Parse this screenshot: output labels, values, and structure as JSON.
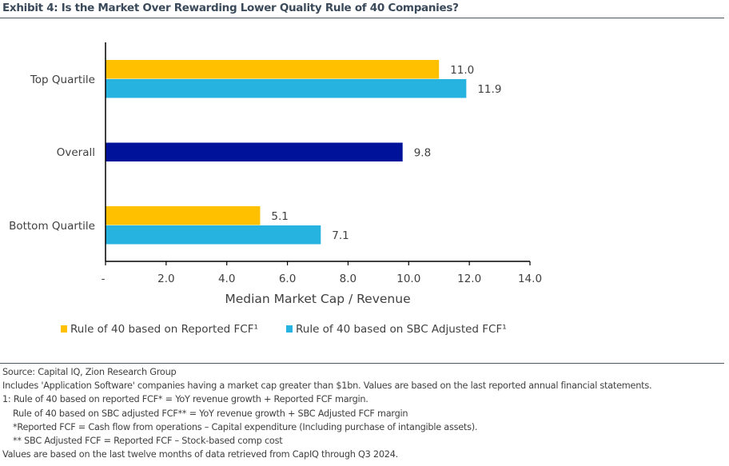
{
  "title": "Exhibit 4: Is the Market Over Rewarding Lower Quality Rule of 40 Companies?",
  "chart_data": {
    "type": "bar",
    "orientation": "horizontal",
    "title": "",
    "xlabel": "Median Market Cap / Revenue",
    "ylabel": "",
    "xlim": [
      0,
      14
    ],
    "x_ticks": [
      0,
      2,
      4,
      6,
      8,
      10,
      12,
      14
    ],
    "x_tick_labels": [
      "-",
      "2.0",
      "4.0",
      "6.0",
      "8.0",
      "10.0",
      "12.0",
      "14.0"
    ],
    "grid": false,
    "categories": [
      "Top Quartile",
      "Overall",
      "Bottom Quartile"
    ],
    "bars": [
      {
        "category": "Top Quartile",
        "series": "reported",
        "value": 11.0,
        "label": "11.0"
      },
      {
        "category": "Top Quartile",
        "series": "sbc",
        "value": 11.9,
        "label": "11.9"
      },
      {
        "category": "Overall",
        "series": "overall",
        "value": 9.8,
        "label": "9.8"
      },
      {
        "category": "Bottom Quartile",
        "series": "reported",
        "value": 5.1,
        "label": "5.1"
      },
      {
        "category": "Bottom Quartile",
        "series": "sbc",
        "value": 7.1,
        "label": "7.1"
      }
    ],
    "series": [
      {
        "key": "reported",
        "name": "Rule of 40 based on Reported FCF¹",
        "color": "#FFC000",
        "in_legend": true
      },
      {
        "key": "sbc",
        "name": "Rule of 40 based on SBC Adjusted FCF¹",
        "color": "#27B3E0",
        "in_legend": true
      },
      {
        "key": "overall",
        "name": "Overall",
        "color": "#00129A",
        "in_legend": false
      }
    ],
    "legend_position": "bottom"
  },
  "notes": {
    "source": "Source: Capital IQ, Zion Research Group",
    "includes": "Includes 'Application Software' companies having a market cap greater than $1bn. Values are based on the last reported annual financial statements.",
    "footnote_1": "1: Rule of 40 based on reported FCF* = YoY revenue growth + Reported FCF margin.",
    "footnote_1b": "Rule of 40 based on SBC adjusted FCF** = YoY revenue growth + SBC Adjusted FCF margin",
    "footnote_star": "*Reported FCF = Cash flow from operations – Capital expenditure (Including purchase of intangible assets).",
    "footnote_dstar": "** SBC Adjusted FCF = Reported FCF – Stock-based comp cost",
    "period": "Values are based on the last twelve months of data retrieved from CapIQ through Q3 2024."
  }
}
